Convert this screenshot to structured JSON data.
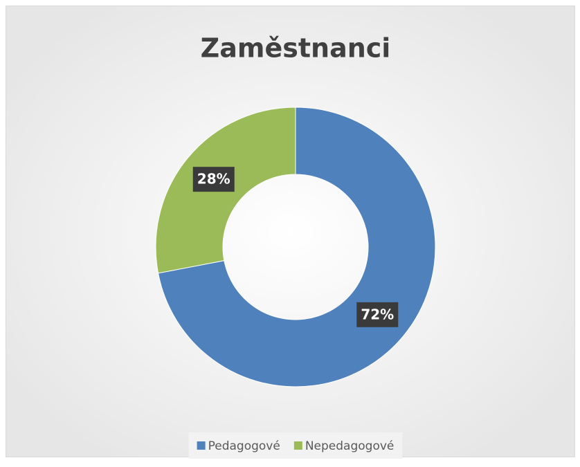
{
  "chart_data": {
    "type": "donut",
    "title": "Zaměstnanci",
    "categories": [
      "Pedagogové",
      "Nepedagogové"
    ],
    "values": [
      72,
      28
    ],
    "value_labels": [
      "72%",
      "28%"
    ],
    "colors": [
      "#4f81bd",
      "#9bbb59"
    ],
    "legend": "bottom"
  }
}
